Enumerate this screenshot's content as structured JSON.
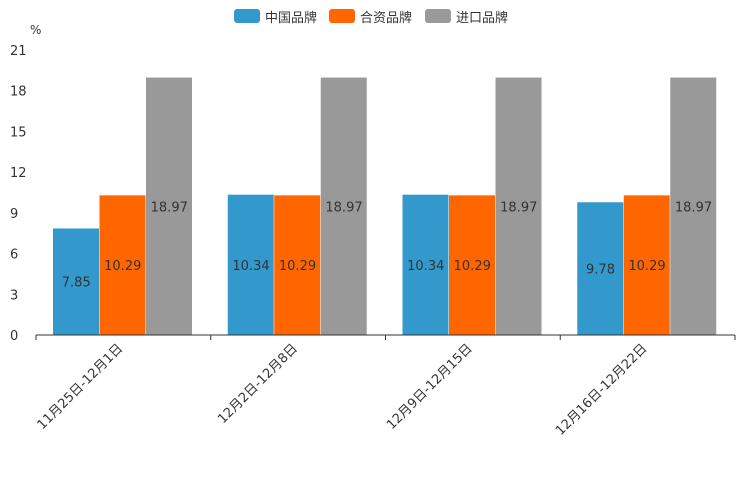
{
  "chart_data": {
    "type": "bar",
    "unit_label": "%",
    "categories": [
      "11月25日-12月1日",
      "12月2日-12月8日",
      "12月9日-12月15日",
      "12月16日-12月22日"
    ],
    "series": [
      {
        "name": "中国品牌",
        "color": "#3399cc",
        "values": [
          7.85,
          10.34,
          10.34,
          9.78
        ]
      },
      {
        "name": "合资品牌",
        "color": "#ff6600",
        "values": [
          10.29,
          10.29,
          10.29,
          10.29
        ]
      },
      {
        "name": "进口品牌",
        "color": "#999999",
        "values": [
          18.97,
          18.97,
          18.97,
          18.97
        ]
      }
    ],
    "labels": [
      [
        "7.85",
        "10.34",
        "10.34",
        "9.78"
      ],
      [
        "10.29",
        "10.29",
        "10.29",
        "10.29"
      ],
      [
        "18.97",
        "18.97",
        "18.97",
        "18.97"
      ]
    ],
    "ylim": [
      0,
      21
    ],
    "yticks": [
      0,
      3,
      6,
      9,
      12,
      15,
      18,
      21
    ],
    "ytick_labels": [
      "0",
      "3",
      "6",
      "9",
      "12",
      "15",
      "18",
      "21"
    ],
    "legend_position": "top-center",
    "grid": false
  }
}
